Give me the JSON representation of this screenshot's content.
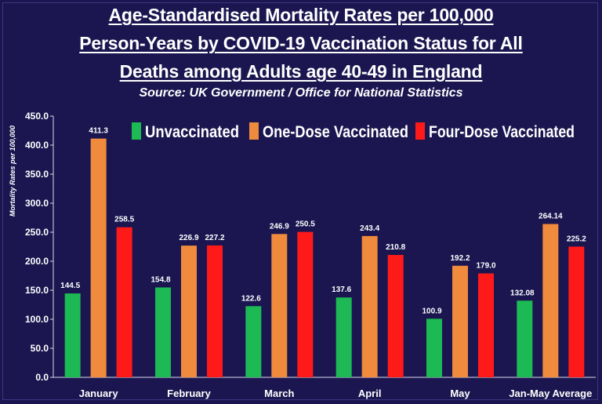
{
  "chart_data": {
    "type": "bar",
    "title_lines": [
      "Age-Standardised Mortality Rates per 100,000",
      "Person-Years by COVID-19 Vaccination Status for All",
      "Deaths among Adults age 40-49 in England"
    ],
    "subtitle": "Source: UK Government / Office for National Statistics",
    "xlabel": "",
    "ylabel": "Mortality Rates per 100,000",
    "ylim": [
      0,
      450
    ],
    "yticks": [
      0,
      50,
      100,
      150,
      200,
      250,
      300,
      350,
      400,
      450
    ],
    "ytick_labels": [
      "0.0",
      "50.0",
      "100.0",
      "150.0",
      "200.0",
      "250.0",
      "300.0",
      "350.0",
      "400.0",
      "450.0"
    ],
    "grid": false,
    "legend_position": "top",
    "categories": [
      "January",
      "February",
      "March",
      "April",
      "May",
      "Jan-May Average"
    ],
    "series": [
      {
        "name": "Unvaccinated",
        "color": "#1db954",
        "values": [
          144.5,
          154.8,
          122.6,
          137.6,
          100.9,
          132.08
        ],
        "labels": [
          "144.5",
          "154.8",
          "122.6",
          "137.6",
          "100.9",
          "132.08"
        ]
      },
      {
        "name": "One-Dose Vaccinated",
        "color": "#f08a3c",
        "values": [
          411.3,
          226.9,
          246.9,
          243.4,
          192.2,
          264.14
        ],
        "labels": [
          "411.3",
          "226.9",
          "246.9",
          "243.4",
          "192.2",
          "264.14"
        ]
      },
      {
        "name": "Four-Dose Vaccinated",
        "color": "#ff1a1a",
        "values": [
          258.5,
          227.2,
          250.5,
          210.8,
          179.0,
          225.2
        ],
        "labels": [
          "258.5",
          "227.2",
          "250.5",
          "210.8",
          "179.0",
          "225.2"
        ]
      }
    ]
  }
}
